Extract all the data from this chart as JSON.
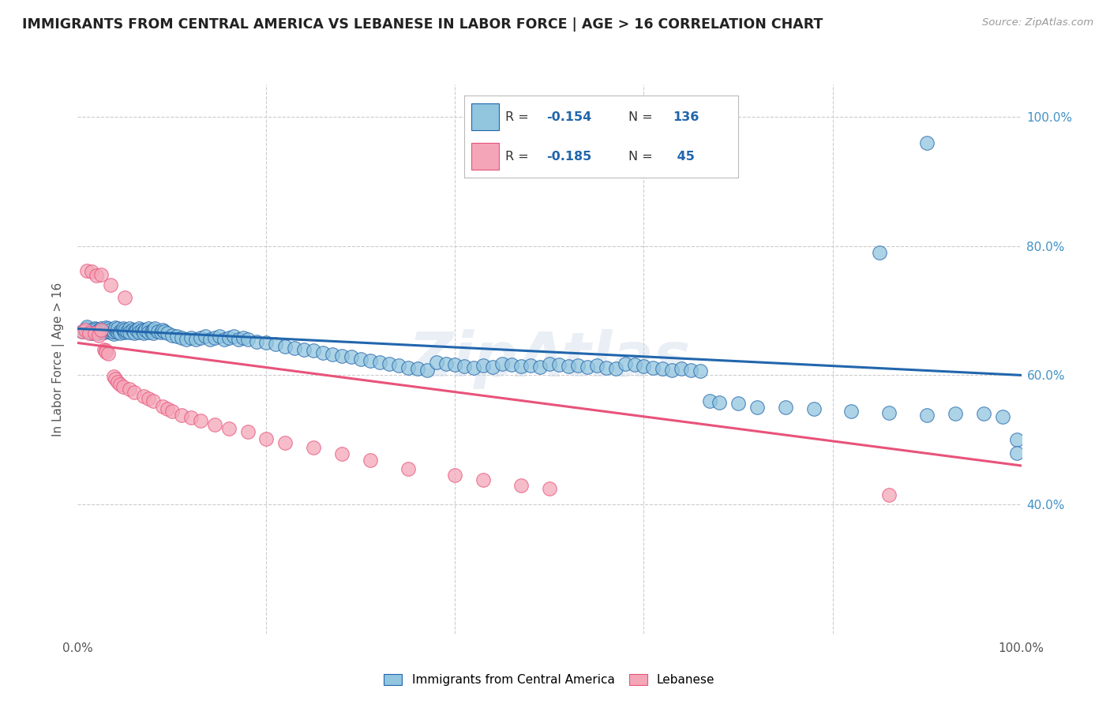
{
  "title": "IMMIGRANTS FROM CENTRAL AMERICA VS LEBANESE IN LABOR FORCE | AGE > 16 CORRELATION CHART",
  "source": "Source: ZipAtlas.com",
  "ylabel": "In Labor Force | Age > 16",
  "xlim": [
    0.0,
    1.0
  ],
  "ylim": [
    0.2,
    1.05
  ],
  "y_ticks_right": [
    1.0,
    0.8,
    0.6,
    0.4
  ],
  "y_tick_labels_right": [
    "100.0%",
    "80.0%",
    "60.0%",
    "40.0%"
  ],
  "color_blue": "#92c5de",
  "color_pink": "#f4a6b8",
  "color_line_blue": "#2166ac",
  "color_line_pink": "#e8537a",
  "color_title": "#222222",
  "color_right_axis": "#4292c6",
  "background_color": "#ffffff",
  "watermark": "ZipAtlas",
  "blue_trend_x": [
    0.0,
    1.0
  ],
  "blue_trend_y": [
    0.672,
    0.6
  ],
  "pink_trend_x": [
    0.0,
    1.0
  ],
  "pink_trend_y": [
    0.65,
    0.46
  ],
  "blue_scatter_x": [
    0.005,
    0.01,
    0.01,
    0.015,
    0.015,
    0.018,
    0.02,
    0.02,
    0.022,
    0.022,
    0.025,
    0.025,
    0.028,
    0.03,
    0.03,
    0.032,
    0.032,
    0.035,
    0.035,
    0.038,
    0.038,
    0.04,
    0.04,
    0.042,
    0.042,
    0.045,
    0.045,
    0.048,
    0.048,
    0.05,
    0.05,
    0.052,
    0.055,
    0.055,
    0.058,
    0.06,
    0.06,
    0.062,
    0.065,
    0.065,
    0.068,
    0.07,
    0.07,
    0.072,
    0.075,
    0.075,
    0.078,
    0.08,
    0.08,
    0.082,
    0.085,
    0.088,
    0.09,
    0.092,
    0.095,
    0.1,
    0.105,
    0.11,
    0.115,
    0.12,
    0.125,
    0.13,
    0.135,
    0.14,
    0.145,
    0.15,
    0.155,
    0.16,
    0.165,
    0.17,
    0.175,
    0.18,
    0.19,
    0.2,
    0.21,
    0.22,
    0.23,
    0.24,
    0.25,
    0.26,
    0.27,
    0.28,
    0.29,
    0.3,
    0.31,
    0.32,
    0.33,
    0.34,
    0.35,
    0.36,
    0.37,
    0.38,
    0.39,
    0.4,
    0.41,
    0.42,
    0.43,
    0.44,
    0.45,
    0.46,
    0.47,
    0.48,
    0.49,
    0.5,
    0.51,
    0.52,
    0.53,
    0.54,
    0.55,
    0.56,
    0.57,
    0.58,
    0.59,
    0.6,
    0.61,
    0.62,
    0.63,
    0.64,
    0.65,
    0.66,
    0.67,
    0.68,
    0.7,
    0.72,
    0.75,
    0.78,
    0.82,
    0.86,
    0.9,
    0.93,
    0.96,
    0.98,
    0.995,
    0.995,
    0.85,
    0.9
  ],
  "blue_scatter_y": [
    0.668,
    0.672,
    0.675,
    0.665,
    0.67,
    0.672,
    0.668,
    0.671,
    0.665,
    0.67,
    0.668,
    0.672,
    0.666,
    0.67,
    0.674,
    0.668,
    0.672,
    0.666,
    0.67,
    0.664,
    0.668,
    0.67,
    0.674,
    0.666,
    0.672,
    0.668,
    0.665,
    0.67,
    0.672,
    0.666,
    0.67,
    0.668,
    0.672,
    0.666,
    0.67,
    0.668,
    0.665,
    0.67,
    0.672,
    0.666,
    0.67,
    0.668,
    0.665,
    0.67,
    0.672,
    0.666,
    0.668,
    0.67,
    0.665,
    0.672,
    0.668,
    0.666,
    0.67,
    0.668,
    0.665,
    0.662,
    0.66,
    0.658,
    0.656,
    0.658,
    0.655,
    0.658,
    0.66,
    0.655,
    0.658,
    0.66,
    0.655,
    0.658,
    0.66,
    0.655,
    0.658,
    0.656,
    0.652,
    0.65,
    0.648,
    0.645,
    0.642,
    0.64,
    0.638,
    0.635,
    0.632,
    0.63,
    0.628,
    0.625,
    0.622,
    0.62,
    0.618,
    0.615,
    0.612,
    0.61,
    0.608,
    0.62,
    0.618,
    0.616,
    0.614,
    0.612,
    0.615,
    0.613,
    0.618,
    0.616,
    0.614,
    0.615,
    0.613,
    0.618,
    0.616,
    0.614,
    0.615,
    0.613,
    0.615,
    0.612,
    0.61,
    0.618,
    0.616,
    0.614,
    0.612,
    0.61,
    0.608,
    0.61,
    0.608,
    0.606,
    0.56,
    0.558,
    0.556,
    0.55,
    0.55,
    0.548,
    0.544,
    0.542,
    0.538,
    0.54,
    0.54,
    0.536,
    0.5,
    0.48,
    0.79,
    0.96
  ],
  "pink_scatter_x": [
    0.005,
    0.008,
    0.01,
    0.012,
    0.015,
    0.018,
    0.02,
    0.022,
    0.025,
    0.025,
    0.028,
    0.03,
    0.03,
    0.032,
    0.035,
    0.038,
    0.04,
    0.042,
    0.045,
    0.048,
    0.05,
    0.055,
    0.06,
    0.07,
    0.075,
    0.08,
    0.09,
    0.095,
    0.1,
    0.11,
    0.12,
    0.13,
    0.145,
    0.16,
    0.18,
    0.2,
    0.22,
    0.25,
    0.28,
    0.31,
    0.35,
    0.4,
    0.43,
    0.47,
    0.5,
    0.86
  ],
  "pink_scatter_y": [
    0.668,
    0.67,
    0.762,
    0.665,
    0.76,
    0.665,
    0.755,
    0.662,
    0.756,
    0.67,
    0.64,
    0.638,
    0.636,
    0.634,
    0.74,
    0.598,
    0.594,
    0.59,
    0.586,
    0.582,
    0.72,
    0.578,
    0.574,
    0.568,
    0.564,
    0.56,
    0.552,
    0.548,
    0.544,
    0.538,
    0.534,
    0.53,
    0.524,
    0.518,
    0.512,
    0.502,
    0.495,
    0.488,
    0.478,
    0.468,
    0.455,
    0.445,
    0.438,
    0.43,
    0.424,
    0.415
  ]
}
